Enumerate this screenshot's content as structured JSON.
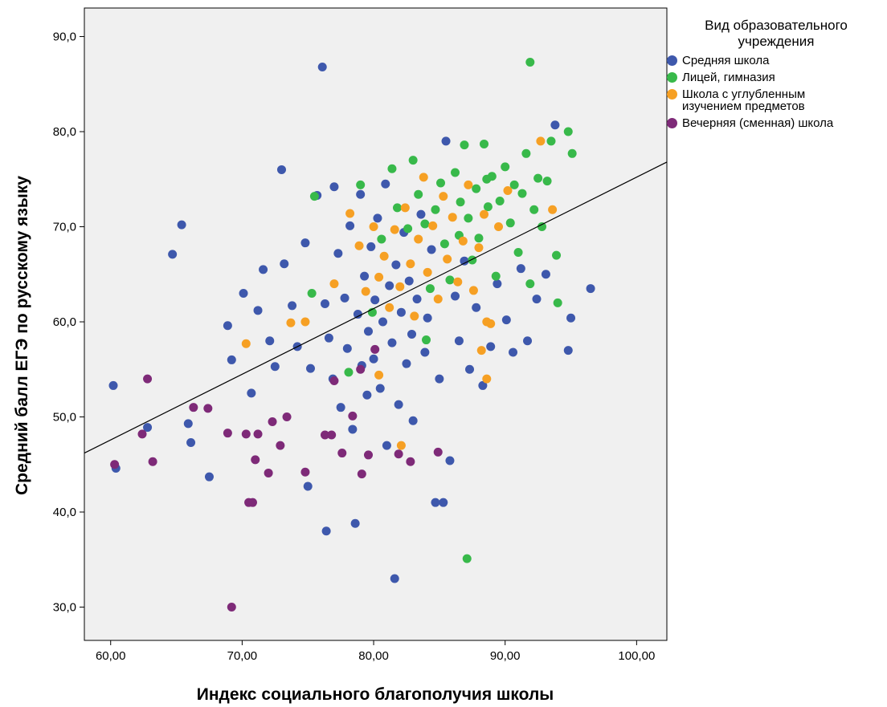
{
  "chart_data": {
    "type": "scatter",
    "title": "",
    "xlabel": "Индекс социального благополучия школы",
    "ylabel": "Средний балл ЕГЭ по русскому языку",
    "xlim": [
      58,
      102.3
    ],
    "ylim": [
      26.5,
      93
    ],
    "x_ticks": [
      60,
      70,
      80,
      90,
      100
    ],
    "x_tick_labels": [
      "60,00",
      "70,00",
      "80,00",
      "90,00",
      "100,00"
    ],
    "y_ticks": [
      30,
      40,
      50,
      60,
      70,
      80,
      90
    ],
    "y_tick_labels": [
      "30,0",
      "40,0",
      "50,0",
      "60,0",
      "70,0",
      "80,0",
      "90,0"
    ],
    "grid": false,
    "background": "#f0f0f0",
    "legend": {
      "title": "Вид образовательного учреждения",
      "placement": "right"
    },
    "fit_line": {
      "x": [
        58,
        102.3
      ],
      "y": [
        46.2,
        76.8
      ],
      "color": "#000000"
    },
    "series": [
      {
        "name": "Средняя школа",
        "color": "#3e58ac",
        "points": [
          [
            60.2,
            53.3
          ],
          [
            60.4,
            44.6
          ],
          [
            62.8,
            48.9
          ],
          [
            64.7,
            67.1
          ],
          [
            65.4,
            70.2
          ],
          [
            65.9,
            49.3
          ],
          [
            66.1,
            47.3
          ],
          [
            67.5,
            43.7
          ],
          [
            68.9,
            59.6
          ],
          [
            69.2,
            56.0
          ],
          [
            70.1,
            63.0
          ],
          [
            70.7,
            52.5
          ],
          [
            71.2,
            61.2
          ],
          [
            71.6,
            65.5
          ],
          [
            72.1,
            58.0
          ],
          [
            72.5,
            55.3
          ],
          [
            73.0,
            76.0
          ],
          [
            73.2,
            66.1
          ],
          [
            73.8,
            61.7
          ],
          [
            74.2,
            57.4
          ],
          [
            74.8,
            68.3
          ],
          [
            75.2,
            55.1
          ],
          [
            75.7,
            73.3
          ],
          [
            76.1,
            86.8
          ],
          [
            76.3,
            61.9
          ],
          [
            76.6,
            58.3
          ],
          [
            76.9,
            54.0
          ],
          [
            77.0,
            74.2
          ],
          [
            77.3,
            67.2
          ],
          [
            77.5,
            51.0
          ],
          [
            77.8,
            62.5
          ],
          [
            78.0,
            57.2
          ],
          [
            78.2,
            70.1
          ],
          [
            78.4,
            48.7
          ],
          [
            78.6,
            38.8
          ],
          [
            78.8,
            60.8
          ],
          [
            79.0,
            73.4
          ],
          [
            79.1,
            55.4
          ],
          [
            79.3,
            64.8
          ],
          [
            79.5,
            52.3
          ],
          [
            79.6,
            59.0
          ],
          [
            79.8,
            67.9
          ],
          [
            80.0,
            56.1
          ],
          [
            80.1,
            62.3
          ],
          [
            80.3,
            70.9
          ],
          [
            80.5,
            53.0
          ],
          [
            80.7,
            60.0
          ],
          [
            80.9,
            74.5
          ],
          [
            81.0,
            47.0
          ],
          [
            81.2,
            63.8
          ],
          [
            81.4,
            57.8
          ],
          [
            81.6,
            33.0
          ],
          [
            81.7,
            66.0
          ],
          [
            81.9,
            51.3
          ],
          [
            82.1,
            61.0
          ],
          [
            82.3,
            69.4
          ],
          [
            82.5,
            55.6
          ],
          [
            82.7,
            64.3
          ],
          [
            82.9,
            58.7
          ],
          [
            83.0,
            49.6
          ],
          [
            83.3,
            62.4
          ],
          [
            83.6,
            71.3
          ],
          [
            83.9,
            56.8
          ],
          [
            84.1,
            60.4
          ],
          [
            84.4,
            67.6
          ],
          [
            84.7,
            41.0
          ],
          [
            85.0,
            54.0
          ],
          [
            85.3,
            41.0
          ],
          [
            85.5,
            79.0
          ],
          [
            85.8,
            45.4
          ],
          [
            86.2,
            62.7
          ],
          [
            86.5,
            58.0
          ],
          [
            86.9,
            66.4
          ],
          [
            87.3,
            55.0
          ],
          [
            87.8,
            61.5
          ],
          [
            88.3,
            53.3
          ],
          [
            88.9,
            57.4
          ],
          [
            89.4,
            64.0
          ],
          [
            90.1,
            60.2
          ],
          [
            90.6,
            56.8
          ],
          [
            91.2,
            65.6
          ],
          [
            91.7,
            58.0
          ],
          [
            92.4,
            62.4
          ],
          [
            93.1,
            65.0
          ],
          [
            93.8,
            80.7
          ],
          [
            94.8,
            57.0
          ],
          [
            95.0,
            60.4
          ],
          [
            96.5,
            63.5
          ],
          [
            76.4,
            38.0
          ],
          [
            75.0,
            42.7
          ]
        ]
      },
      {
        "name": "Лицей, гимназия",
        "color": "#38b94a",
        "points": [
          [
            75.5,
            73.2
          ],
          [
            75.3,
            63.0
          ],
          [
            78.1,
            54.7
          ],
          [
            79.0,
            74.4
          ],
          [
            79.9,
            61.0
          ],
          [
            80.6,
            68.7
          ],
          [
            81.4,
            76.1
          ],
          [
            81.8,
            72.0
          ],
          [
            82.6,
            69.8
          ],
          [
            83.0,
            77.0
          ],
          [
            83.4,
            73.4
          ],
          [
            83.9,
            70.3
          ],
          [
            84.3,
            63.5
          ],
          [
            84.7,
            71.8
          ],
          [
            85.1,
            74.6
          ],
          [
            85.4,
            68.2
          ],
          [
            85.8,
            64.4
          ],
          [
            86.2,
            75.7
          ],
          [
            86.6,
            72.6
          ],
          [
            86.9,
            78.6
          ],
          [
            87.2,
            70.9
          ],
          [
            87.5,
            66.5
          ],
          [
            87.8,
            74.0
          ],
          [
            88.0,
            68.8
          ],
          [
            88.4,
            78.7
          ],
          [
            88.7,
            72.1
          ],
          [
            89.0,
            75.3
          ],
          [
            89.3,
            64.8
          ],
          [
            89.6,
            72.7
          ],
          [
            90.0,
            76.3
          ],
          [
            90.4,
            70.4
          ],
          [
            90.7,
            74.4
          ],
          [
            91.0,
            67.3
          ],
          [
            91.3,
            73.5
          ],
          [
            91.6,
            77.7
          ],
          [
            91.9,
            87.3
          ],
          [
            92.2,
            71.8
          ],
          [
            92.5,
            75.1
          ],
          [
            92.8,
            70.0
          ],
          [
            93.2,
            74.8
          ],
          [
            93.5,
            79.0
          ],
          [
            93.9,
            67.0
          ],
          [
            94.8,
            80.0
          ],
          [
            95.1,
            77.7
          ],
          [
            94.0,
            62.0
          ],
          [
            87.1,
            35.1
          ],
          [
            91.9,
            64.0
          ],
          [
            88.6,
            75.0
          ],
          [
            86.5,
            69.1
          ],
          [
            84.0,
            58.1
          ]
        ]
      },
      {
        "name": "Школа с углубленным\nизучением предметов",
        "color": "#f6a024",
        "points": [
          [
            70.3,
            57.7
          ],
          [
            73.7,
            59.9
          ],
          [
            74.8,
            60.0
          ],
          [
            77.0,
            64.0
          ],
          [
            78.2,
            71.4
          ],
          [
            78.9,
            68.0
          ],
          [
            79.4,
            63.2
          ],
          [
            80.0,
            70.0
          ],
          [
            80.4,
            64.7
          ],
          [
            80.8,
            66.9
          ],
          [
            81.2,
            61.5
          ],
          [
            81.6,
            69.7
          ],
          [
            82.0,
            63.7
          ],
          [
            82.4,
            72.0
          ],
          [
            82.8,
            66.1
          ],
          [
            83.1,
            60.6
          ],
          [
            83.4,
            68.7
          ],
          [
            83.8,
            75.2
          ],
          [
            84.1,
            65.2
          ],
          [
            84.5,
            70.1
          ],
          [
            84.9,
            62.4
          ],
          [
            85.3,
            73.2
          ],
          [
            85.6,
            66.6
          ],
          [
            86.0,
            71.0
          ],
          [
            86.4,
            64.2
          ],
          [
            86.8,
            68.5
          ],
          [
            87.2,
            74.4
          ],
          [
            87.6,
            63.3
          ],
          [
            88.0,
            67.8
          ],
          [
            88.4,
            71.3
          ],
          [
            88.6,
            60.0
          ],
          [
            88.9,
            59.8
          ],
          [
            88.2,
            57.0
          ],
          [
            88.6,
            54.0
          ],
          [
            89.5,
            70.0
          ],
          [
            90.2,
            73.8
          ],
          [
            92.7,
            79.0
          ],
          [
            93.6,
            71.8
          ],
          [
            80.4,
            54.4
          ],
          [
            82.1,
            47.0
          ]
        ]
      },
      {
        "name": "Вечерняя (сменная) школа",
        "color": "#7e2a78",
        "points": [
          [
            60.3,
            45.0
          ],
          [
            62.4,
            48.2
          ],
          [
            62.8,
            54.0
          ],
          [
            63.2,
            45.3
          ],
          [
            66.3,
            51.0
          ],
          [
            67.4,
            50.9
          ],
          [
            68.9,
            48.3
          ],
          [
            70.3,
            48.2
          ],
          [
            70.5,
            41.0
          ],
          [
            70.8,
            41.0
          ],
          [
            71.0,
            45.5
          ],
          [
            71.2,
            48.2
          ],
          [
            72.0,
            44.1
          ],
          [
            72.3,
            49.5
          ],
          [
            72.9,
            47.0
          ],
          [
            73.4,
            50.0
          ],
          [
            74.8,
            44.2
          ],
          [
            76.3,
            48.1
          ],
          [
            76.8,
            48.1
          ],
          [
            77.6,
            46.2
          ],
          [
            78.4,
            50.1
          ],
          [
            79.1,
            44.0
          ],
          [
            79.6,
            46.0
          ],
          [
            81.9,
            46.1
          ],
          [
            82.8,
            45.3
          ],
          [
            84.9,
            46.3
          ],
          [
            69.2,
            30.0
          ],
          [
            79.0,
            55.0
          ],
          [
            80.1,
            57.1
          ],
          [
            77.0,
            53.8
          ]
        ]
      }
    ]
  }
}
